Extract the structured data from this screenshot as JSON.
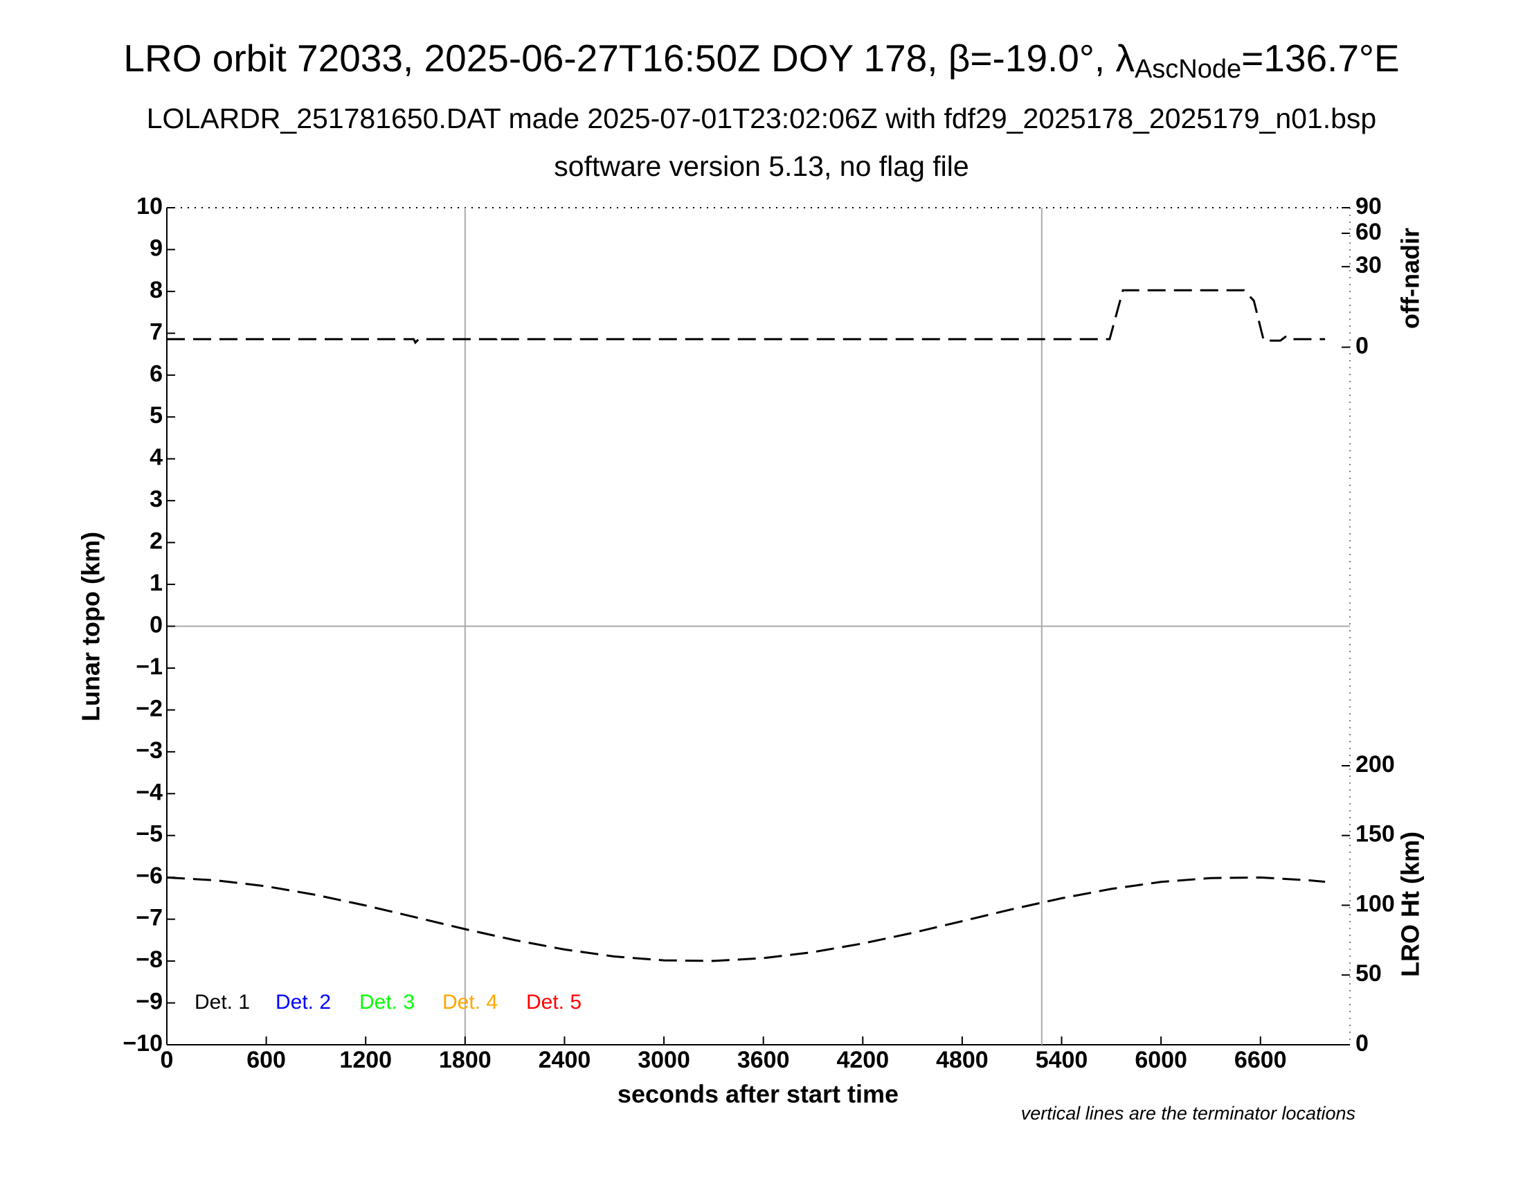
{
  "chart_data": {
    "type": "line",
    "title_parts": [
      "LRO orbit 72033, 2025-06-27T16:50Z DOY 178, β=-19.0°, λ",
      "AscNode",
      "=136.7°E"
    ],
    "subtitle": "LOLARDR_251781650.DAT made 2025-07-01T23:02:06Z with fdf29_2025178_2025179_n01.bsp",
    "subtitle2": "software version 5.13, no flag file",
    "xlabel": "seconds after start time",
    "ylabel": "Lunar topo (km)",
    "y2label": "off-nadir",
    "y3label": "LRO Ht (km)",
    "note": "vertical lines are the terminator locations",
    "xlim": [
      0,
      7140
    ],
    "xticks": [
      0,
      600,
      1200,
      1800,
      2400,
      3000,
      3600,
      4200,
      4800,
      5400,
      6000,
      6600
    ],
    "ylim": [
      -10,
      10
    ],
    "yticks": [
      {
        "value": -10,
        "label": "−10"
      },
      {
        "value": -9,
        "label": "−9"
      },
      {
        "value": -8,
        "label": "−8"
      },
      {
        "value": -7,
        "label": "−7"
      },
      {
        "value": -6,
        "label": "−6"
      },
      {
        "value": -5,
        "label": "−5"
      },
      {
        "value": -4,
        "label": "−4"
      },
      {
        "value": -3,
        "label": "−3"
      },
      {
        "value": -2,
        "label": "−2"
      },
      {
        "value": -1,
        "label": "−1"
      },
      0,
      1,
      2,
      3,
      4,
      5,
      6,
      7,
      8,
      9,
      10
    ],
    "y2lim": [
      0,
      90
    ],
    "y2scale": "sqrt",
    "y2ticks": [
      0,
      30,
      60,
      90
    ],
    "y3lim": [
      0,
      200
    ],
    "y3ticks": [
      0,
      50,
      100,
      150,
      200
    ],
    "zero_line": true,
    "terminators": [
      1800,
      5280
    ],
    "legend": [
      {
        "name": "Det. 1",
        "color": "#000000"
      },
      {
        "name": "Det. 2",
        "color": "#0000ff"
      },
      {
        "name": "Det. 3",
        "color": "#00ff00"
      },
      {
        "name": "Det. 4",
        "color": "#ffa500"
      },
      {
        "name": "Det. 5",
        "color": "#ff0000"
      }
    ],
    "series": [
      {
        "color": "#000000",
        "axis": "y2",
        "x": [
          0,
          1490,
          1500,
          1520,
          1800,
          1990,
          2000,
          2010,
          5690,
          5770,
          6500,
          6560,
          6620,
          6650,
          6720,
          6750,
          6760,
          6990
        ],
        "values": [
          0.3,
          0.3,
          0.1,
          0.3,
          0.3,
          0.3,
          0.6,
          0.3,
          0.3,
          15,
          15,
          10,
          0.2,
          0.2,
          0.2,
          0.5,
          0.3,
          0.3
        ]
      },
      {
        "color": "#000000",
        "axis": "y3",
        "x": [
          0,
          300,
          600,
          900,
          1200,
          1500,
          1800,
          2100,
          2400,
          2700,
          3000,
          3300,
          3600,
          3900,
          4200,
          4500,
          4800,
          5100,
          5400,
          5700,
          6000,
          6300,
          6600,
          6900,
          6990
        ],
        "values": [
          119.9,
          117.8,
          113.6,
          107.4,
          99.8,
          91.4,
          82.9,
          75.0,
          68.3,
          63.3,
          60.5,
          60.1,
          62.1,
          66.4,
          72.6,
          80.2,
          88.6,
          97.1,
          105.0,
          111.7,
          116.7,
          119.5,
          119.9,
          117.8,
          116.8
        ]
      }
    ]
  }
}
